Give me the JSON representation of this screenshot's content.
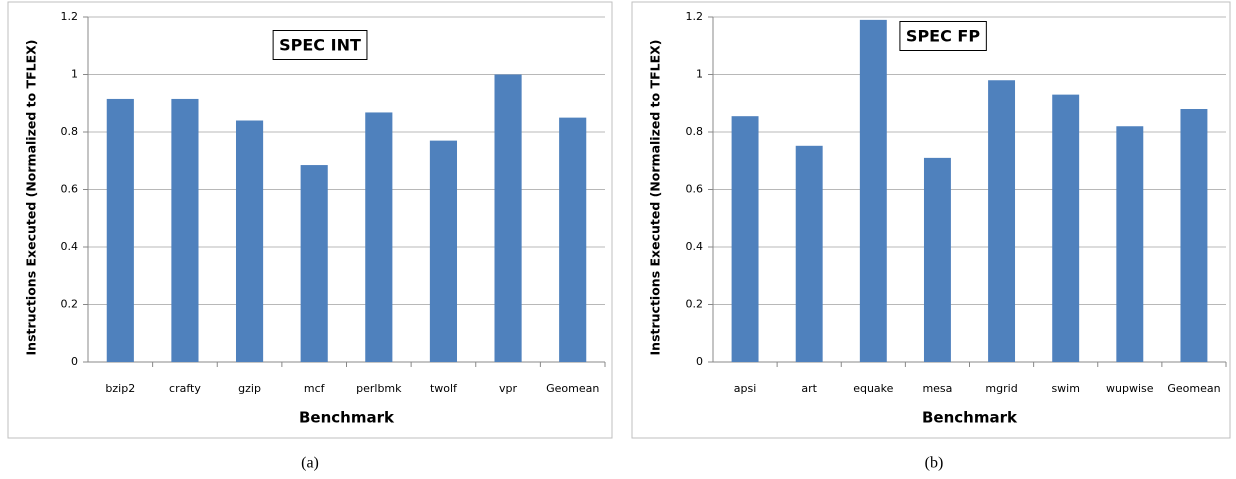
{
  "chart_data": [
    {
      "type": "bar",
      "title": "SPEC INT",
      "caption": "(a)",
      "x_label": "Benchmark",
      "y_label": "Instructions Executed (Normalized to TFLEX)",
      "categories": [
        "bzip2",
        "crafty",
        "gzip",
        "mcf",
        "perlbmk",
        "twolf",
        "vpr",
        "Geomean"
      ],
      "values": [
        0.915,
        0.915,
        0.84,
        0.685,
        0.868,
        0.77,
        1.0,
        0.85
      ],
      "color": "#4f81bd",
      "ylim": [
        0,
        1.2
      ],
      "yticks": [
        0,
        0.2,
        0.4,
        0.6,
        0.8,
        1,
        1.2
      ],
      "grid": true
    },
    {
      "type": "bar",
      "title": "SPEC FP",
      "caption": "(b)",
      "x_label": "Benchmark",
      "y_label": "Instructions Executed (Normalized to TFLEX)",
      "categories": [
        "apsi",
        "art",
        "equake",
        "mesa",
        "mgrid",
        "swim",
        "wupwise",
        "Geomean"
      ],
      "values": [
        0.855,
        0.752,
        1.19,
        0.71,
        0.98,
        0.93,
        0.82,
        0.88
      ],
      "color": "#4f81bd",
      "ylim": [
        0,
        1.2
      ],
      "yticks": [
        0,
        0.2,
        0.4,
        0.6,
        0.8,
        1,
        1.2
      ],
      "grid": true
    }
  ]
}
